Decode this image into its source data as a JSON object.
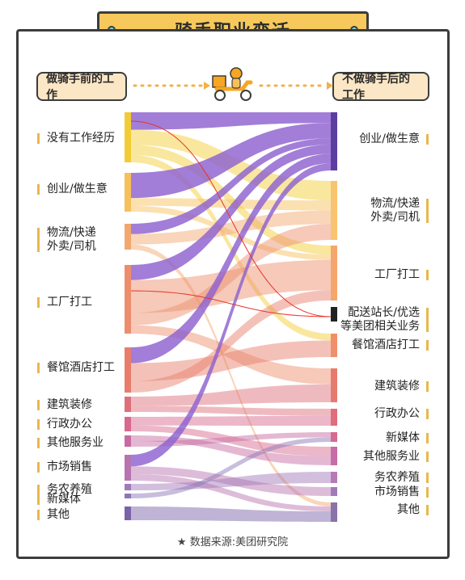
{
  "title": "骑手职业变迁",
  "header": {
    "before": "做骑手前的工作",
    "after": "不做骑手后的工作"
  },
  "source": "★ 数据来源:美团研究院",
  "chart_data": {
    "type": "sankey",
    "left_nodes": [
      {
        "label": "没有工作经历",
        "color": "#f2cc35"
      },
      {
        "label": "创业/做生意",
        "color": "#f6c05a"
      },
      {
        "label": "物流/快递\n外卖/司机",
        "color": "#f2a76d"
      },
      {
        "label": "工厂打工",
        "color": "#ec8e6c"
      },
      {
        "label": "餐馆酒店打工",
        "color": "#e87d6b"
      },
      {
        "label": "建筑装修",
        "color": "#de6f79"
      },
      {
        "label": "行政办公",
        "color": "#d8688c"
      },
      {
        "label": "其他服务业",
        "color": "#c76aa0"
      },
      {
        "label": "市场销售",
        "color": "#b774b0"
      },
      {
        "label": "务农养殖",
        "color": "#a07ab8"
      },
      {
        "label": "新媒体",
        "color": "#8d76b8"
      },
      {
        "label": "其他",
        "color": "#7a63a8"
      }
    ],
    "right_nodes": [
      {
        "label": "创业/做生意",
        "color": "#5b3ea0"
      },
      {
        "label": "物流/快递\n外卖/司机",
        "color": "#f8c470"
      },
      {
        "label": "工厂打工",
        "color": "#f4a66c"
      },
      {
        "label": "配送站长/优选\n等美团相关业务",
        "color": "#222222"
      },
      {
        "label": "餐馆酒店打工",
        "color": "#ef8f6c"
      },
      {
        "label": "建筑装修",
        "color": "#e77a6e"
      },
      {
        "label": "行政办公",
        "color": "#df6d7c"
      },
      {
        "label": "新媒体",
        "color": "#d66a90"
      },
      {
        "label": "其他服务业",
        "color": "#c76ca8"
      },
      {
        "label": "务农养殖",
        "color": "#b87ab6"
      },
      {
        "label": "市场销售",
        "color": "#a07ab8"
      },
      {
        "label": "其他",
        "color": "#8a73a8"
      }
    ]
  }
}
